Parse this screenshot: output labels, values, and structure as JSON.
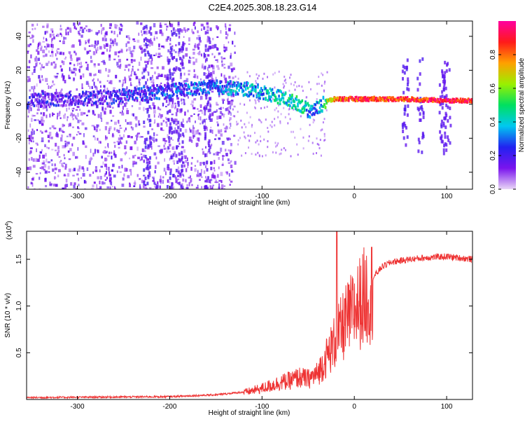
{
  "figure": {
    "title": "C2E4.2025.308.18.23.G14"
  },
  "chart_data": [
    {
      "type": "heatmap",
      "xlabel": "Height of straight line (km)",
      "ylabel": "Frequency (Hz)",
      "xlim": [
        -355,
        128
      ],
      "ylim": [
        -50,
        49
      ],
      "x_ticks": [
        -300,
        -200,
        -100,
        0,
        100
      ],
      "y_ticks": [
        -40,
        -20,
        0,
        20,
        40
      ],
      "colorbar": {
        "label": "Normalized spectral amplitude",
        "range": [
          0,
          1
        ],
        "ticks": [
          0.0,
          0.2,
          0.4,
          0.6,
          0.8
        ],
        "colors": [
          "#e9d6f6",
          "#7a14ee",
          "#2222f0",
          "#00c8f0",
          "#00e060",
          "#9af000",
          "#ffa000",
          "#ff1a1a",
          "#ff00a0"
        ]
      },
      "ridge": {
        "x": [
          -355,
          -300,
          -250,
          -200,
          -150,
          -120,
          -100,
          -80,
          -60,
          -50,
          -40,
          -30,
          -20,
          0,
          50,
          100,
          128
        ],
        "frequency": [
          2,
          3,
          5,
          8,
          10,
          9,
          7,
          4,
          0,
          -4,
          -2,
          2,
          3,
          3,
          3,
          2,
          2
        ],
        "amplitude": [
          0.15,
          0.15,
          0.2,
          0.25,
          0.3,
          0.35,
          0.35,
          0.4,
          0.45,
          0.35,
          0.3,
          0.6,
          0.8,
          0.85,
          0.85,
          0.9,
          0.9
        ]
      }
    },
    {
      "type": "line",
      "xlabel": "Height of straight line (km)",
      "ylabel": "SNR (10 * v/v)",
      "scale_label": "(x10",
      "scale_exponent": "4",
      "scale_suffix": ")",
      "xlim": [
        -355,
        128
      ],
      "ylim": [
        0,
        1.8
      ],
      "x_ticks": [
        -300,
        -200,
        -100,
        0,
        100
      ],
      "y_ticks": [
        0.5,
        1.0,
        1.5
      ],
      "y_tick_labels": [
        "0.5",
        "1.0",
        "1.5"
      ],
      "series_color": "#ee3333",
      "envelope": {
        "x": [
          -355,
          -200,
          -150,
          -120,
          -100,
          -80,
          -70,
          -60,
          -50,
          -40,
          -30,
          -20,
          -10,
          0,
          10,
          20,
          30,
          40,
          60,
          80,
          100,
          128
        ],
        "snr": [
          0.02,
          0.03,
          0.05,
          0.08,
          0.13,
          0.2,
          0.22,
          0.26,
          0.24,
          0.3,
          0.5,
          0.7,
          0.9,
          1.05,
          1.2,
          1.3,
          1.42,
          1.47,
          1.5,
          1.52,
          1.53,
          1.5
        ]
      },
      "spike": {
        "x": -19,
        "snr": 1.8
      }
    }
  ]
}
